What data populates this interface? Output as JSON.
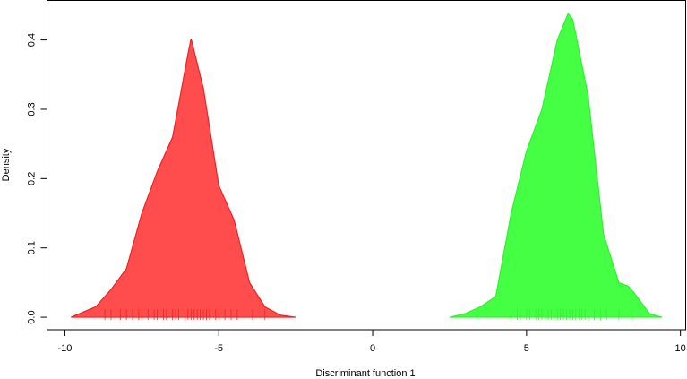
{
  "chart_data": {
    "type": "density",
    "xlabel": "Discriminant function 1",
    "ylabel": "Density",
    "xlim": [
      -10.58,
      10.17
    ],
    "ylim": [
      -0.018,
      0.457
    ],
    "xticks": [
      -10,
      -5,
      0,
      5,
      10
    ],
    "yticks": [
      {
        "value": 0,
        "label": "0.0"
      },
      0.1,
      0.2,
      0.3,
      0.4
    ],
    "series": [
      {
        "color": "#ff4d4d",
        "stroke": "#ee2222",
        "x": [
          -9.8,
          -9.0,
          -8.5,
          -8.0,
          -7.5,
          -7.0,
          -6.5,
          -6.0,
          -5.9,
          -5.5,
          -5.0,
          -4.5,
          -4.0,
          -3.5,
          -3.0,
          -2.5
        ],
        "values": [
          0.0,
          0.015,
          0.04,
          0.07,
          0.15,
          0.21,
          0.26,
          0.38,
          0.402,
          0.33,
          0.19,
          0.14,
          0.05,
          0.015,
          0.003,
          0.0
        ],
        "rug": [
          -8.7,
          -8.5,
          -8.2,
          -8.0,
          -7.8,
          -7.6,
          -7.5,
          -7.3,
          -7.1,
          -7.0,
          -6.8,
          -6.7,
          -6.5,
          -6.4,
          -6.3,
          -6.1,
          -6.0,
          -5.9,
          -5.8,
          -5.7,
          -5.6,
          -5.5,
          -5.4,
          -5.3,
          -5.1,
          -5.0,
          -4.8,
          -4.6,
          -4.4,
          -3.9,
          -3.5
        ]
      },
      {
        "color": "#44ff44",
        "stroke": "#33ee33",
        "x": [
          2.5,
          3.0,
          3.5,
          4.0,
          4.5,
          5.0,
          5.5,
          6.0,
          6.35,
          6.5,
          7.0,
          7.5,
          8.0,
          8.3,
          8.5,
          9.0,
          9.4
        ],
        "values": [
          0.0,
          0.005,
          0.015,
          0.03,
          0.15,
          0.24,
          0.3,
          0.4,
          0.438,
          0.43,
          0.32,
          0.12,
          0.05,
          0.045,
          0.035,
          0.005,
          0.0
        ],
        "rug": [
          3.4,
          4.5,
          4.7,
          4.8,
          5.0,
          5.1,
          5.3,
          5.4,
          5.5,
          5.6,
          5.7,
          5.8,
          5.9,
          6.0,
          6.1,
          6.2,
          6.3,
          6.4,
          6.5,
          6.6,
          6.7,
          6.8,
          6.9,
          7.0,
          7.2,
          7.4,
          7.6,
          8.0,
          8.4
        ]
      }
    ]
  }
}
